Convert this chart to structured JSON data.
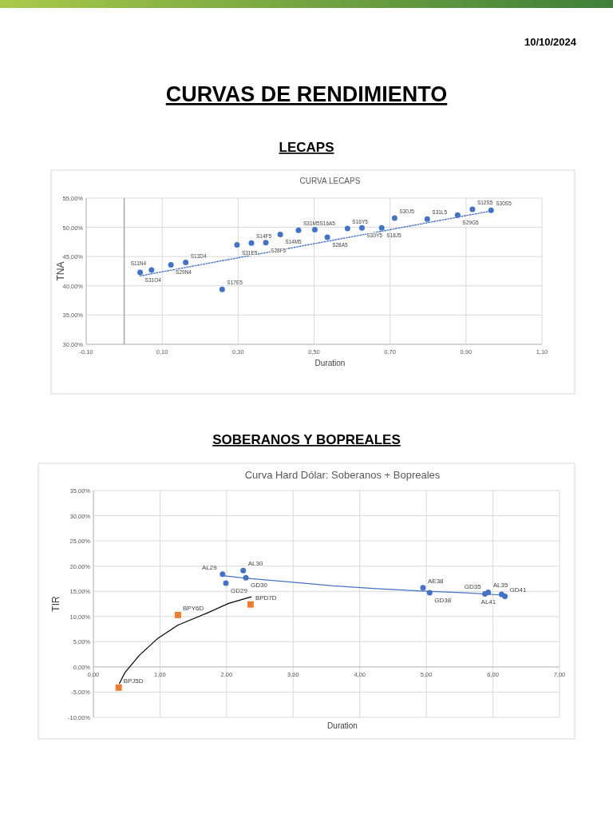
{
  "chart_data": [
    {
      "type": "scatter",
      "title": "CURVA LECAPS",
      "xlabel": "Duration",
      "ylabel": "TNA",
      "xlim": [
        -0.1,
        1.1
      ],
      "xticks": [
        {
          "value": -0.1,
          "label": "-0,10"
        },
        {
          "value": 0.1,
          "label": "0,10"
        },
        {
          "value": 0.3,
          "label": "0,30"
        },
        {
          "value": 0.5,
          "label": "0,50"
        },
        {
          "value": 0.7,
          "label": "0,70"
        },
        {
          "value": 0.9,
          "label": "0,90"
        },
        {
          "value": 1.1,
          "label": "1,10"
        }
      ],
      "ylim": [
        30,
        55
      ],
      "yticks": [
        {
          "value": 30,
          "label": "30,00%"
        },
        {
          "value": 35,
          "label": "35,00%"
        },
        {
          "value": 40,
          "label": "40,00%"
        },
        {
          "value": 45,
          "label": "45,00%"
        },
        {
          "value": 50,
          "label": "50,00%"
        },
        {
          "value": 55,
          "label": "55,00%"
        }
      ],
      "grid": true,
      "marker": "circle",
      "series": [
        {
          "color": "#4472c4",
          "x": [
            0.042,
            0.072,
            0.123,
            0.162,
            0.258,
            0.297,
            0.335,
            0.373,
            0.411,
            0.459,
            0.502,
            0.535,
            0.588,
            0.626,
            0.678,
            0.712,
            0.798,
            0.878,
            0.917,
            0.966
          ],
          "values": [
            42.3,
            42.7,
            43.6,
            44.0,
            39.4,
            47.0,
            47.3,
            47.4,
            48.8,
            49.5,
            49.6,
            48.3,
            49.8,
            49.9,
            49.9,
            51.6,
            51.4,
            52.1,
            53.1,
            52.9
          ]
        },
        {
          "type": "line",
          "color": "#4472c4",
          "line_style": "dotted",
          "marker": "none",
          "x": [
            0.042,
            0.966
          ],
          "values": [
            41.7,
            52.8
          ]
        }
      ],
      "annotations": [
        "10/10/2024",
        "CURVAS DE RENDIMIENTO",
        "LECAPS",
        {
          "text": "S31O4",
          "x": 0.042,
          "y": 42.3
        },
        {
          "text": "S11N4",
          "x": 0.072,
          "y": 42.7
        },
        {
          "text": "S29N4",
          "x": 0.123,
          "y": 43.6
        },
        {
          "text": "S13D4",
          "x": 0.162,
          "y": 44.0
        },
        {
          "text": "S17E5",
          "x": 0.258,
          "y": 39.4
        },
        {
          "text": "S31E5",
          "x": 0.297,
          "y": 47.0
        },
        {
          "text": "S14F5",
          "x": 0.335,
          "y": 47.3
        },
        {
          "text": "S28F5",
          "x": 0.373,
          "y": 47.4
        },
        {
          "text": "S14M5",
          "x": 0.411,
          "y": 48.8
        },
        {
          "text": "S31M5",
          "x": 0.459,
          "y": 49.5
        },
        {
          "text": "S16A5",
          "x": 0.502,
          "y": 49.6
        },
        {
          "text": "S28A5",
          "x": 0.535,
          "y": 48.3
        },
        {
          "text": "S16Y5",
          "x": 0.588,
          "y": 49.8
        },
        {
          "text": "S30Y5",
          "x": 0.626,
          "y": 49.9
        },
        {
          "text": "S18J5",
          "x": 0.678,
          "y": 49.9
        },
        {
          "text": "S30J5",
          "x": 0.712,
          "y": 51.6
        },
        {
          "text": "S31L5",
          "x": 0.798,
          "y": 51.4
        },
        {
          "text": "S29G5",
          "x": 0.878,
          "y": 52.1
        },
        {
          "text": "S12S5",
          "x": 0.917,
          "y": 53.1
        },
        {
          "text": "S30S5",
          "x": 0.966,
          "y": 52.9
        }
      ]
    },
    {
      "type": "scatter",
      "title": "Curva Hard Dólar: Soberanos + Bopreales",
      "xlabel": "Duration",
      "ylabel": "TIR",
      "xlim": [
        0,
        7
      ],
      "xticks": [
        {
          "value": 0,
          "label": "0,00"
        },
        {
          "value": 1,
          "label": "1,00"
        },
        {
          "value": 2,
          "label": "2,00"
        },
        {
          "value": 3,
          "label": "3,00"
        },
        {
          "value": 4,
          "label": "4,00"
        },
        {
          "value": 5,
          "label": "5,00"
        },
        {
          "value": 6,
          "label": "6,00"
        },
        {
          "value": 7,
          "label": "7,00"
        }
      ],
      "ylim": [
        -10,
        35
      ],
      "yticks": [
        {
          "value": -10,
          "label": "-10,00%"
        },
        {
          "value": -5,
          "label": "-5,00%"
        },
        {
          "value": 0,
          "label": "0,00%"
        },
        {
          "value": 5,
          "label": "5,00%"
        },
        {
          "value": 10,
          "label": "10,00%"
        },
        {
          "value": 15,
          "label": "15,00%"
        },
        {
          "value": 20,
          "label": "20,00%"
        },
        {
          "value": 25,
          "label": "25,00%"
        },
        {
          "value": 30,
          "label": "30,00%"
        },
        {
          "value": 35,
          "label": "35,00%"
        }
      ],
      "grid": true,
      "marker": "circle",
      "series": [
        {
          "color": "#4472c4",
          "x": [
            1.94,
            1.99,
            2.25,
            2.29,
            4.95,
            5.05,
            5.93,
            5.88,
            6.13,
            6.18
          ],
          "values": [
            18.4,
            16.6,
            19.1,
            17.7,
            15.7,
            14.7,
            14.8,
            14.5,
            14.4,
            14.0
          ]
        },
        {
          "type": "line",
          "color": "#4472c4",
          "line_style": "solid",
          "marker": "none",
          "x": [
            1.94,
            2.3,
            3.0,
            3.6,
            4.3,
            5.0,
            5.6,
            6.2
          ],
          "values": [
            18.1,
            17.6,
            16.8,
            16.1,
            15.5,
            15.0,
            14.7,
            14.2
          ]
        },
        {
          "color": "#ed7d31",
          "marker": "square",
          "x": [
            0.38,
            1.27,
            2.36
          ],
          "values": [
            -4.1,
            10.3,
            12.4
          ]
        },
        {
          "type": "line",
          "color": "#000000",
          "line_style": "solid",
          "marker": "none",
          "x": [
            0.39,
            0.47,
            0.69,
            0.97,
            1.27,
            1.71,
            2.03,
            2.37
          ],
          "values": [
            -3.3,
            -1.2,
            2.3,
            5.7,
            8.3,
            10.7,
            12.6,
            13.9
          ]
        }
      ],
      "annotations": [
        "SOBERANOS Y BOPREALES",
        {
          "text": "AL29",
          "x": 1.94,
          "y": 18.4
        },
        {
          "text": "GD29",
          "x": 1.99,
          "y": 16.6
        },
        {
          "text": "AL30",
          "x": 2.25,
          "y": 19.1
        },
        {
          "text": "GD30",
          "x": 2.29,
          "y": 17.7
        },
        {
          "text": "AE38",
          "x": 4.95,
          "y": 15.7
        },
        {
          "text": "GD38",
          "x": 5.05,
          "y": 14.7
        },
        {
          "text": "AL35",
          "x": 5.93,
          "y": 14.8
        },
        {
          "text": "GD35",
          "x": 5.88,
          "y": 14.5
        },
        {
          "text": "AL41",
          "x": 6.13,
          "y": 14.4
        },
        {
          "text": "GD41",
          "x": 6.18,
          "y": 14.0
        },
        {
          "text": "BPJ5D",
          "x": 0.38,
          "y": -4.1
        },
        {
          "text": "BPY6D",
          "x": 1.27,
          "y": 10.3
        },
        {
          "text": "BPD7D",
          "x": 2.36,
          "y": 12.4
        }
      ]
    }
  ]
}
